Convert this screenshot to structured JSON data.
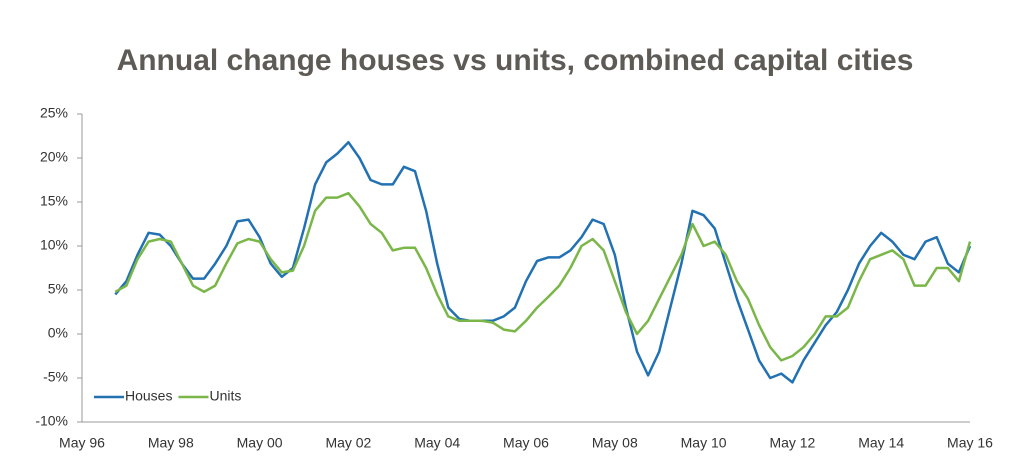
{
  "chart_data": {
    "type": "line",
    "title": "Annual change houses vs units, combined capital cities",
    "categories": [
      "May 96",
      null,
      null,
      null,
      null,
      null,
      null,
      null,
      "May 98",
      null,
      null,
      null,
      null,
      null,
      null,
      null,
      "May 00",
      null,
      null,
      null,
      null,
      null,
      null,
      null,
      "May 02",
      null,
      null,
      null,
      null,
      null,
      null,
      null,
      "May 04",
      null,
      null,
      null,
      null,
      null,
      null,
      null,
      "May 06",
      null,
      null,
      null,
      null,
      null,
      null,
      null,
      "May 08",
      null,
      null,
      null,
      null,
      null,
      null,
      null,
      "May 10",
      null,
      null,
      null,
      null,
      null,
      null,
      null,
      "May 12",
      null,
      null,
      null,
      null,
      null,
      null,
      null,
      "May 14",
      null,
      null,
      null,
      null,
      null,
      null,
      null,
      "May 16"
    ],
    "series": [
      {
        "name": "Houses",
        "color": "#2271b3",
        "values": [
          null,
          null,
          null,
          4.5,
          6,
          9,
          11.5,
          11.3,
          10,
          8,
          6.3,
          6.3,
          8,
          10,
          12.8,
          13,
          11,
          8,
          6.5,
          7.5,
          12,
          17,
          19.5,
          20.5,
          21.8,
          20,
          17.5,
          17,
          17,
          19,
          18.5,
          14,
          8,
          3,
          1.7,
          1.5,
          1.5,
          1.5,
          2,
          3,
          6,
          8.3,
          8.7,
          8.7,
          9.5,
          11,
          13,
          12.5,
          9,
          3,
          -2,
          -4.7,
          -2,
          3,
          8,
          14,
          13.5,
          12,
          8,
          4,
          0.5,
          -3,
          -5,
          -4.5,
          -5.5,
          -3,
          -1,
          1,
          2.5,
          5,
          8,
          10,
          11.5,
          10.5,
          9,
          8.5,
          10.5,
          11,
          8,
          7,
          10
        ]
      },
      {
        "name": "Units",
        "color": "#7ab648",
        "values": [
          null,
          null,
          null,
          4.8,
          5.5,
          8.5,
          10.5,
          10.8,
          10.5,
          8,
          5.5,
          4.8,
          5.5,
          8,
          10.3,
          10.8,
          10.5,
          8.5,
          7,
          7.2,
          10,
          14,
          15.5,
          15.5,
          16,
          14.5,
          12.5,
          11.5,
          9.5,
          9.8,
          9.8,
          7.5,
          4.5,
          2,
          1.5,
          1.5,
          1.5,
          1.3,
          0.5,
          0.3,
          1.5,
          3,
          4.2,
          5.5,
          7.5,
          10,
          10.8,
          9.5,
          6,
          2.5,
          0,
          1.5,
          4,
          6.5,
          9,
          12.5,
          10,
          10.5,
          9,
          6,
          4,
          1,
          -1.5,
          -3,
          -2.5,
          -1.5,
          0,
          2,
          2,
          3,
          6,
          8.5,
          9,
          9.5,
          8.5,
          5.5,
          5.5,
          7.5,
          7.5,
          6,
          10.5
        ]
      }
    ],
    "ylim": [
      -10,
      25
    ],
    "yticks": [
      {
        "value": -10,
        "label": "-10%"
      },
      {
        "value": -5,
        "label": "-5%"
      },
      {
        "value": 0,
        "label": "0%"
      },
      {
        "value": 5,
        "label": "5%"
      },
      {
        "value": 10,
        "label": "10%"
      },
      {
        "value": 15,
        "label": "15%"
      },
      {
        "value": 20,
        "label": "20%"
      },
      {
        "value": 25,
        "label": "25%"
      }
    ],
    "grid": false,
    "legend": "lower left"
  }
}
